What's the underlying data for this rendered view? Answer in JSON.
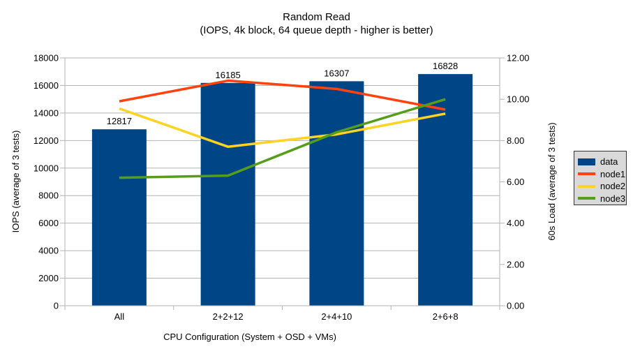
{
  "title": {
    "text": "Random Read",
    "subtitle": "(IOPS, 4k block, 64 queue depth - higher is better)"
  },
  "chart_data": {
    "type": "combo bar + line, dual axis",
    "title": "Random Read",
    "subtitle": "(IOPS, 4k block, 64 queue depth - higher is better)",
    "categories": [
      "All",
      "2+2+12",
      "2+4+10",
      "2+6+8"
    ],
    "series": [
      {
        "name": "data",
        "type": "bar",
        "axis": "left",
        "color": "#004586",
        "values": [
          12817,
          16185,
          16307,
          16828
        ],
        "data_labels": [
          "12817",
          "16185",
          "16307",
          "16828"
        ]
      },
      {
        "name": "node1",
        "type": "line",
        "axis": "right",
        "color": "#ff420e",
        "values": [
          9.9,
          10.9,
          10.5,
          9.5
        ]
      },
      {
        "name": "node2",
        "type": "line",
        "axis": "right",
        "color": "#ffd320",
        "values": [
          9.55,
          7.7,
          8.3,
          9.3
        ]
      },
      {
        "name": "node3",
        "type": "line",
        "axis": "right",
        "color": "#579d1c",
        "values": [
          6.2,
          6.3,
          8.4,
          10.0
        ]
      }
    ],
    "left_axis": {
      "title": "IOPS (average of 3 tests)",
      "min": 0,
      "max": 18000,
      "step": 2000
    },
    "right_axis": {
      "title": "60s Load (average of 3 tests)",
      "min": 0,
      "max": 12,
      "step": 2,
      "decimals": 2
    },
    "x_axis": {
      "title": "CPU Configuration (System + OSD + VMs)"
    },
    "legend": {
      "position": "right",
      "entries": [
        "data",
        "node1",
        "node2",
        "node3"
      ],
      "background": "#d9d9d9",
      "border": "#333333"
    },
    "grid": {
      "horizontal": true,
      "vertical": false,
      "color": "#b3b3b3"
    },
    "axis_color": "#b3b3b3",
    "text_color": "#000000",
    "background": "#ffffff"
  }
}
